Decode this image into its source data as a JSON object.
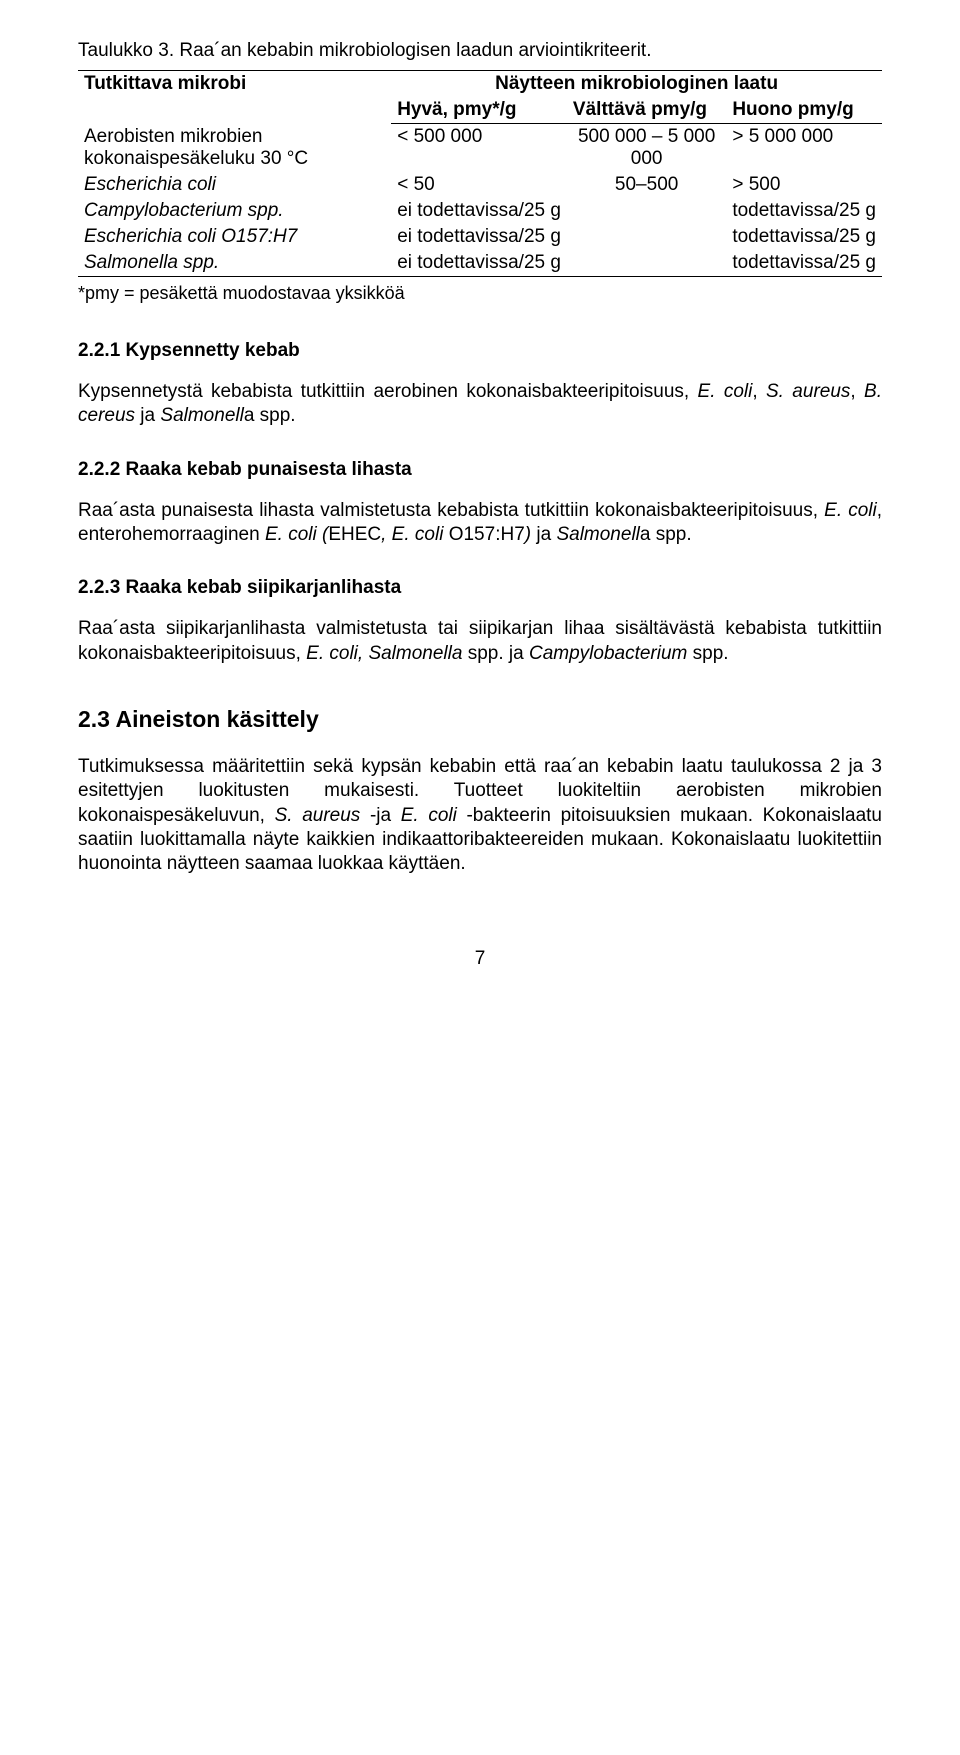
{
  "caption": "Taulukko 3. Raa´an kebabin mikrobiologisen laadun arviointikriteerit.",
  "table": {
    "header": {
      "microbe": "Tutkittava mikrobi",
      "quality_title": "Näytteen mikrobiologinen laatu",
      "good": "Hyvä, pmy*/g",
      "fair": "Välttävä pmy/g",
      "poor": "Huono pmy/g"
    },
    "rows": [
      {
        "microbe": "Aerobisten mikrobien kokonaispesäkeluku 30 °C",
        "good": "< 500 000",
        "fair": "500 000 – 5 000 000",
        "poor": "> 5 000 000"
      },
      {
        "microbe": "Escherichia coli",
        "good": "< 50",
        "fair": "50–500",
        "poor": "> 500"
      },
      {
        "microbe": "Campylobacterium spp.",
        "good": "ei todettavissa/25 g",
        "fair": "",
        "poor": "todettavissa/25 g"
      },
      {
        "microbe": "Escherichia coli O157:H7",
        "good": "ei todettavissa/25 g",
        "fair": "",
        "poor": "todettavissa/25 g"
      },
      {
        "microbe": "Salmonella spp.",
        "good": "ei todettavissa/25 g",
        "fair": "",
        "poor": "todettavissa/25 g"
      }
    ]
  },
  "footnote": "*pmy = pesäkettä muodostavaa yksikköä",
  "sections": {
    "s221": {
      "title": "2.2.1 Kypsennetty kebab",
      "body": "Kypsennetystä kebabista tutkittiin aerobinen kokonaisbakteeripitoisuus, E. coli, S. aureus, B. cereus ja Salmonella spp."
    },
    "s222": {
      "title": "2.2.2 Raaka kebab punaisesta lihasta",
      "body": "Raa´asta punaisesta lihasta valmistetusta kebabista tutkittiin kokonaisbakteeripitoisuus, E. coli, enterohemorraaginen E. coli (EHEC, E. coli O157:H7) ja Salmonella spp."
    },
    "s223": {
      "title": "2.2.3 Raaka kebab siipikarjanlihasta",
      "body": "Raa´asta siipikarjanlihasta valmistetusta tai siipikarjan lihaa sisältävästä kebabista tutkittiin kokonaisbakteeripitoisuus, E. coli, Salmonella spp. ja Campylobacterium spp."
    },
    "s23": {
      "title": "2.3 Aineiston käsittely",
      "body": "Tutkimuksessa määritettiin sekä kypsän kebabin että raa´an kebabin laatu taulukossa 2 ja 3 esitettyjen luokitusten mukaisesti. Tuotteet luokiteltiin aerobisten mikrobien kokonaispesäkeluvun, S. aureus -ja E. coli -bakteerin pitoisuuksien mukaan. Kokonaislaatu saatiin luokittamalla näyte kaikkien indikaattoribakteereiden mukaan. Kokonaislaatu luokitettiin huonointa näytteen saamaa luokkaa käyttäen."
    }
  },
  "page_number": "7"
}
